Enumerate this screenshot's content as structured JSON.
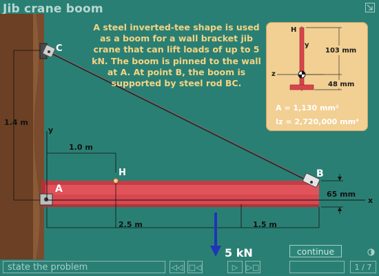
{
  "title": "Jib crane boom",
  "problem_text": "A steel inverted-tee shape is used as a boom for a wall bracket jib crane that can lift loads of up to 5 kN.  The boom is pinned to the wall at A.  At point B, the boom is supported by steel rod BC.",
  "labels": {
    "C": "C",
    "A": "A",
    "B": "B",
    "H": "H",
    "y": "y",
    "x": "x",
    "height_dim": "1.4 m",
    "h_dim": "1.0 m",
    "span_ab": "2.5 m",
    "span_b": "1.5 m",
    "depth_dim": "65 mm",
    "load": "5 kN"
  },
  "inset": {
    "H": "H",
    "y": "y",
    "z": "z",
    "dim_103": "103 mm",
    "dim_48": "48 mm",
    "area": "A = 1,130 mm²",
    "inertia": "Iz = 2,720,000 mm⁴"
  },
  "controls": {
    "continue_label": "continue",
    "status_label": "state the problem",
    "page": "1 / 7"
  },
  "colors": {
    "background": "#2a7f74",
    "wall": "#6b4025",
    "boom": "#d9444a",
    "text_accent": "#f4d483",
    "inset_bg": "#f2cf92",
    "load_arrow": "#1d36b6"
  }
}
